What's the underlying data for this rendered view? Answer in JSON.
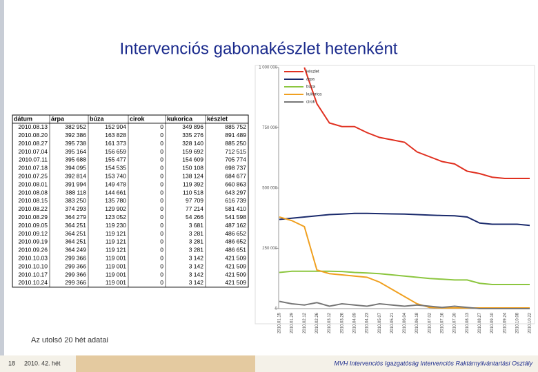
{
  "title": "Intervenciós gabonakészlet hetenként",
  "table": {
    "header": [
      "dátum",
      "árpa",
      "búza",
      "cirok",
      "kukorica",
      "készlet"
    ],
    "rows": [
      [
        "2010.08.13",
        "382 952",
        "152 904",
        "0",
        "349 896",
        "885 752"
      ],
      [
        "2010.08.20",
        "392 386",
        "163 828",
        "0",
        "335 276",
        "891 489"
      ],
      [
        "2010.08.27",
        "395 738",
        "161 373",
        "0",
        "328 140",
        "885 250"
      ],
      [
        "2010.07.04",
        "395 164",
        "156 659",
        "0",
        "159 692",
        "712 515"
      ],
      [
        "2010.07.11",
        "395 688",
        "155 477",
        "0",
        "154 609",
        "705 774"
      ],
      [
        "2010.07.18",
        "394 095",
        "154 535",
        "0",
        "150 108",
        "698 737"
      ],
      [
        "2010.07.25",
        "392 814",
        "153 740",
        "0",
        "138 124",
        "684 677"
      ],
      [
        "2010.08.01",
        "391 994",
        "149 478",
        "0",
        "119 392",
        "660 863"
      ],
      [
        "2010.08.08",
        "388 118",
        "144 661",
        "0",
        "110 518",
        "643 297"
      ],
      [
        "2010.08.15",
        "383 250",
        "135 780",
        "0",
        "97 709",
        "616 739"
      ],
      [
        "2010.08.22",
        "374 293",
        "129 902",
        "0",
        "77 214",
        "581 410"
      ],
      [
        "2010.08.29",
        "364 279",
        "123 052",
        "0",
        "54 266",
        "541 598"
      ],
      [
        "2010.09.05",
        "364 251",
        "119 230",
        "0",
        "3 681",
        "487 162"
      ],
      [
        "2010.09.12",
        "364 251",
        "119 121",
        "0",
        "3 281",
        "486 652"
      ],
      [
        "2010.09.19",
        "364 251",
        "119 121",
        "0",
        "3 281",
        "486 652"
      ],
      [
        "2010.09.26",
        "364 249",
        "119 121",
        "0",
        "3 281",
        "486 651"
      ],
      [
        "2010.10.03",
        "299 366",
        "119 001",
        "0",
        "3 142",
        "421 509"
      ],
      [
        "2010.10.10",
        "299 366",
        "119 001",
        "0",
        "3 142",
        "421 509"
      ],
      [
        "2010.10.17",
        "299 366",
        "119 001",
        "0",
        "3 142",
        "421 509"
      ],
      [
        "2010.10.24",
        "299 366",
        "119 001",
        "0",
        "3 142",
        "421 509"
      ]
    ]
  },
  "note": "Az utolsó 20 hét adatai",
  "footer": {
    "page": "18",
    "week": "2010. 42. hét",
    "org": "MVH Intervenciós Igazgatóság Intervenciós Raktárnyilvántartási Osztály"
  },
  "chart_data": {
    "type": "line",
    "categories": [
      "2010.01.15",
      "2010.01.29",
      "2010.02.12",
      "2010.02.26",
      "2010.03.12",
      "2010.03.26",
      "2010.04.09",
      "2010.04.23",
      "2010.05.07",
      "2010.05.21",
      "2010.06.04",
      "2010.06.18",
      "2010.07.02",
      "2010.07.16",
      "2010.07.30",
      "2010.08.13",
      "2010.08.27",
      "2010.09.10",
      "2010.09.24",
      "2010.10.08",
      "2010.10.22"
    ],
    "series": [
      {
        "name": "készlet",
        "color": "#e03020",
        "values": [
          null,
          null,
          1000000,
          850000,
          770000,
          755000,
          755000,
          730000,
          710000,
          700000,
          690000,
          650000,
          630000,
          610000,
          600000,
          570000,
          560000,
          545000,
          540000,
          540000,
          540000
        ]
      },
      {
        "name": "árpa",
        "color": "#1a2a6c",
        "values": [
          370000,
          375000,
          380000,
          385000,
          390000,
          392000,
          395000,
          395000,
          394000,
          393000,
          392000,
          390000,
          388000,
          386000,
          385000,
          380000,
          355000,
          350000,
          350000,
          350000,
          345000
        ]
      },
      {
        "name": "búza",
        "color": "#8cc63f",
        "values": [
          150000,
          155000,
          155000,
          155000,
          155000,
          154000,
          150000,
          148000,
          145000,
          140000,
          135000,
          130000,
          125000,
          122000,
          119000,
          119000,
          105000,
          100000,
          100000,
          100000,
          100000
        ]
      },
      {
        "name": "kukorica",
        "color": "#f0a020",
        "values": [
          380000,
          365000,
          340000,
          160000,
          145000,
          140000,
          135000,
          130000,
          110000,
          80000,
          50000,
          20000,
          5000,
          3000,
          3000,
          3000,
          3000,
          3000,
          3000,
          3000,
          3000
        ]
      },
      {
        "name": "cirok",
        "color": "#777777",
        "values": [
          30000,
          20000,
          15000,
          25000,
          10000,
          20000,
          15000,
          10000,
          20000,
          15000,
          10000,
          15000,
          10000,
          5000,
          10000,
          5000,
          0,
          0,
          0,
          0,
          0
        ]
      }
    ],
    "ylim": [
      0,
      1000000
    ],
    "yticks": [
      0,
      {
        "value": 250000,
        "label": "250 000"
      },
      {
        "value": 500000,
        "label": "500 000"
      },
      {
        "value": 750000,
        "label": "750 000"
      },
      {
        "value": 1000000,
        "label": "1 000 000"
      }
    ]
  }
}
